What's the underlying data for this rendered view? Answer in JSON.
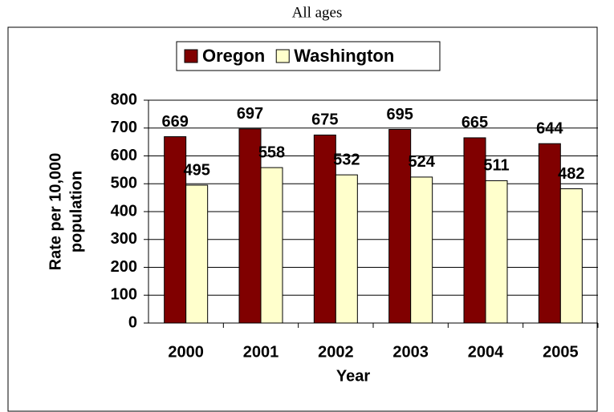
{
  "chart_data": {
    "type": "bar",
    "title": "All ages",
    "categories": [
      "2000",
      "2001",
      "2002",
      "2003",
      "2004",
      "2005"
    ],
    "series": [
      {
        "name": "Oregon",
        "color": "#800000",
        "values": [
          669,
          697,
          675,
          695,
          665,
          644
        ]
      },
      {
        "name": "Washington",
        "color": "#ffffcc",
        "values": [
          495,
          558,
          532,
          524,
          511,
          482
        ]
      }
    ],
    "x_label": "Year",
    "y_label": [
      "Rate per 10,000",
      "population"
    ],
    "ylim": [
      0,
      800
    ],
    "yticks": [
      0,
      100,
      200,
      300,
      400,
      500,
      600,
      700,
      800
    ],
    "grid": true,
    "legend": "top"
  }
}
